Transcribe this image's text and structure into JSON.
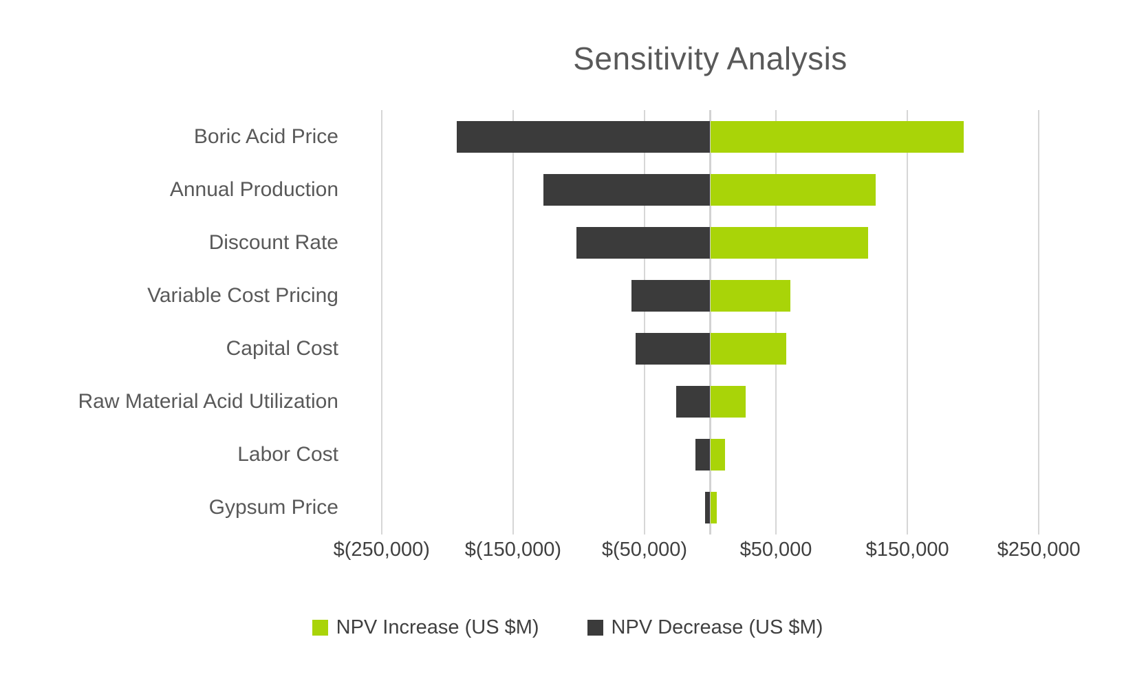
{
  "chart_data": {
    "type": "bar",
    "orientation": "horizontal",
    "variant": "tornado",
    "title": "Sensitivity Analysis",
    "categories": [
      "Boric Acid Price",
      "Annual Production",
      "Discount Rate",
      "Variable Cost Pricing",
      "Capital Cost",
      "Raw Material Acid Utilization",
      "Labor Cost",
      "Gypsum Price"
    ],
    "series": [
      {
        "name": "NPV Increase (US $M)",
        "color": "#a9d408",
        "values": [
          193000,
          126000,
          120000,
          61000,
          58000,
          27000,
          11000,
          5000
        ]
      },
      {
        "name": "NPV Decrease (US $M)",
        "color": "#3b3b3b",
        "values": [
          -193000,
          -127000,
          -102000,
          -60000,
          -57000,
          -26000,
          -11000,
          -4000
        ]
      }
    ],
    "x_axis": {
      "min": -275000,
      "max": 275000,
      "tick_values": [
        -250000,
        -150000,
        -50000,
        50000,
        150000,
        250000
      ],
      "tick_labels": [
        "$(250,000)",
        "$(150,000)",
        "$(50,000)",
        "$50,000",
        "$150,000",
        "$250,000"
      ]
    },
    "grid": "vertical-on",
    "legend_position": "bottom",
    "colors": {
      "gridline": "#d6d6d6",
      "title_text": "#595959",
      "category_text": "#595959",
      "axis_text": "#404040",
      "background": "#ffffff"
    }
  }
}
